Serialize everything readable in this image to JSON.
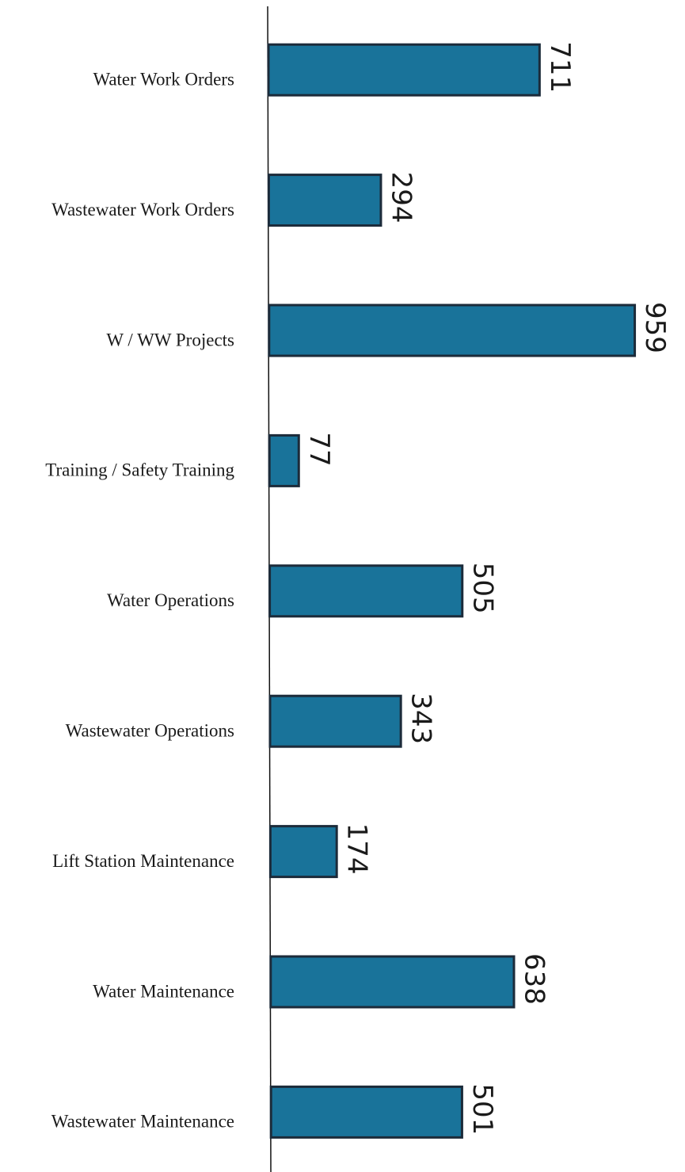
{
  "chart_data": {
    "type": "bar",
    "orientation": "horizontal",
    "categories": [
      "Water Work Orders",
      "Wastewater Work Orders",
      "W / WW Projects",
      "Training / Safety Training",
      "Water Operations",
      "Wastewater Operations",
      "Lift Station Maintenance",
      "Water Maintenance",
      "Wastewater Maintenance"
    ],
    "values": [
      711,
      294,
      959,
      77,
      505,
      343,
      174,
      638,
      501
    ],
    "color": "#19739a"
  }
}
